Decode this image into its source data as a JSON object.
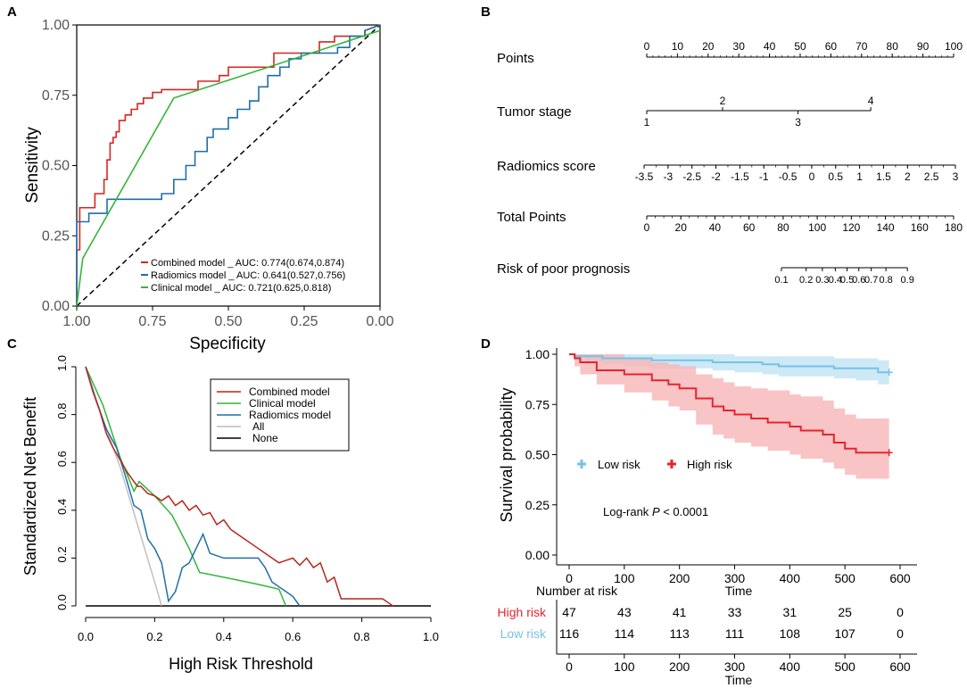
{
  "chart_data": [
    {
      "panel": "A",
      "type": "line",
      "title": "",
      "xlabel": "Specificity",
      "ylabel": "Sensitivity",
      "xlim": [
        1.0,
        0.0
      ],
      "ylim": [
        0.0,
        1.0
      ],
      "x_ticks": [
        "1.00",
        "0.75",
        "0.50",
        "0.25",
        "0.00"
      ],
      "y_ticks": [
        "0.00",
        "0.25",
        "0.50",
        "0.75",
        "1.00"
      ],
      "legend_position": "bottom-right",
      "series": [
        {
          "name": "Combined model _ AUC: 0.774(0.674,0.874)",
          "color": "#d7261e",
          "x": [
            1.0,
            1.0,
            0.99,
            0.99,
            0.94,
            0.94,
            0.91,
            0.91,
            0.9,
            0.9,
            0.89,
            0.89,
            0.88,
            0.88,
            0.87,
            0.87,
            0.86,
            0.86,
            0.84,
            0.84,
            0.82,
            0.82,
            0.8,
            0.8,
            0.78,
            0.78,
            0.75,
            0.75,
            0.72,
            0.72,
            0.6,
            0.6,
            0.53,
            0.53,
            0.5,
            0.5,
            0.35,
            0.35,
            0.2,
            0.2,
            0.15,
            0.15,
            0.05,
            0.05,
            0.0
          ],
          "y": [
            0.0,
            0.2,
            0.2,
            0.35,
            0.35,
            0.4,
            0.4,
            0.45,
            0.45,
            0.52,
            0.52,
            0.58,
            0.58,
            0.6,
            0.6,
            0.62,
            0.62,
            0.66,
            0.66,
            0.68,
            0.68,
            0.7,
            0.7,
            0.72,
            0.72,
            0.74,
            0.74,
            0.76,
            0.76,
            0.77,
            0.77,
            0.8,
            0.8,
            0.82,
            0.82,
            0.85,
            0.85,
            0.9,
            0.9,
            0.94,
            0.94,
            0.96,
            0.96,
            0.98,
            1.0
          ]
        },
        {
          "name": "Radiomics model _ AUC: 0.641(0.527,0.756)",
          "color": "#1f6fa8",
          "x": [
            1.0,
            1.0,
            0.96,
            0.96,
            0.9,
            0.9,
            0.8,
            0.8,
            0.72,
            0.72,
            0.68,
            0.68,
            0.64,
            0.64,
            0.61,
            0.61,
            0.57,
            0.57,
            0.55,
            0.55,
            0.5,
            0.5,
            0.47,
            0.47,
            0.43,
            0.43,
            0.4,
            0.4,
            0.4,
            0.4,
            0.37,
            0.37,
            0.33,
            0.33,
            0.3,
            0.3,
            0.26,
            0.26,
            0.14,
            0.14,
            0.1,
            0.1,
            0.05,
            0.05,
            0.0
          ],
          "y": [
            0.0,
            0.3,
            0.3,
            0.33,
            0.33,
            0.38,
            0.38,
            0.38,
            0.38,
            0.4,
            0.4,
            0.45,
            0.45,
            0.5,
            0.5,
            0.55,
            0.55,
            0.6,
            0.6,
            0.63,
            0.63,
            0.67,
            0.67,
            0.7,
            0.7,
            0.73,
            0.73,
            0.76,
            0.76,
            0.78,
            0.78,
            0.82,
            0.82,
            0.85,
            0.85,
            0.88,
            0.88,
            0.9,
            0.9,
            0.92,
            0.92,
            0.96,
            0.96,
            0.98,
            1.0
          ]
        },
        {
          "name": "Clinical model _ AUC: 0.721(0.625,0.818)",
          "color": "#32b53a",
          "x": [
            1.0,
            0.98,
            0.68,
            0.0
          ],
          "y": [
            0.0,
            0.17,
            0.74,
            0.98
          ]
        }
      ],
      "reference_line": {
        "x": [
          1.0,
          0.0
        ],
        "y": [
          0.0,
          1.0
        ],
        "style": "dashed",
        "color": "#000000"
      }
    },
    {
      "panel": "B",
      "type": "nomogram",
      "rows": [
        {
          "label": "Points",
          "scale": [
            0,
            100
          ],
          "ticks": [
            "0",
            "10",
            "20",
            "30",
            "40",
            "50",
            "60",
            "70",
            "80",
            "90",
            "100"
          ],
          "values": [
            0,
            10,
            20,
            30,
            40,
            50,
            60,
            70,
            80,
            90,
            100
          ]
        },
        {
          "label": "Tumor stage",
          "scale": [
            0,
            73
          ],
          "ticks_up": [
            "2",
            "4"
          ],
          "values_up": [
            24.7,
            73
          ],
          "ticks_down": [
            "1",
            "3"
          ],
          "values_down": [
            0,
            49.3
          ]
        },
        {
          "label": "Radiomics score",
          "ticks": [
            "-3.5",
            "-3",
            "-2.5",
            "-2",
            "-1.5",
            "-1",
            "-0.5",
            "0",
            "0.5",
            "1",
            "1.5",
            "2",
            "2.5",
            "3"
          ],
          "values": [
            -3.5,
            -3,
            -2.5,
            -2,
            -1.5,
            -1,
            -0.5,
            0,
            0.5,
            1,
            1.5,
            2,
            2.5,
            3
          ]
        },
        {
          "label": "Total Points",
          "scale": [
            0,
            180
          ],
          "ticks": [
            "0",
            "20",
            "40",
            "60",
            "80",
            "100",
            "120",
            "140",
            "160",
            "180"
          ],
          "values": [
            0,
            20,
            40,
            60,
            80,
            100,
            120,
            140,
            160,
            180
          ]
        },
        {
          "label": "Risk of poor prognosis",
          "ticks": [
            "0.1",
            "0.2",
            "0.3",
            "0.4",
            "0.5",
            "0.6",
            "0.7",
            "0.8",
            "0.9"
          ],
          "values": [
            0.1,
            0.2,
            0.3,
            0.4,
            0.5,
            0.6,
            0.7,
            0.8,
            0.9
          ],
          "total_points_at_ticks": [
            79,
            93.5,
            103,
            110.6,
            117.5,
            124.4,
            131.7,
            140.3,
            152.9
          ]
        }
      ]
    },
    {
      "panel": "C",
      "type": "line",
      "title": "",
      "xlabel": "High Risk Threshold",
      "ylabel": "Standardized Net Benefit",
      "xlim": [
        0.0,
        1.0
      ],
      "ylim": [
        0.0,
        1.0
      ],
      "x_ticks": [
        "0.0",
        "0.2",
        "0.4",
        "0.6",
        "0.8",
        "1.0"
      ],
      "y_ticks": [
        "0.0",
        "0.2",
        "0.4",
        "0.6",
        "0.8",
        "1.0"
      ],
      "legend_position": "top-right",
      "series": [
        {
          "name": "Combined model",
          "color": "#b5271e",
          "x": [
            0.0,
            0.02,
            0.04,
            0.06,
            0.08,
            0.1,
            0.12,
            0.14,
            0.15,
            0.16,
            0.18,
            0.2,
            0.22,
            0.24,
            0.26,
            0.28,
            0.3,
            0.32,
            0.34,
            0.36,
            0.38,
            0.4,
            0.42,
            0.44,
            0.46,
            0.48,
            0.5,
            0.52,
            0.54,
            0.56,
            0.58,
            0.6,
            0.62,
            0.64,
            0.66,
            0.68,
            0.7,
            0.72,
            0.74,
            0.78,
            0.82,
            0.86,
            0.88,
            0.89
          ],
          "y": [
            1.0,
            0.9,
            0.82,
            0.72,
            0.66,
            0.61,
            0.56,
            0.52,
            0.5,
            0.5,
            0.47,
            0.46,
            0.44,
            0.46,
            0.42,
            0.44,
            0.4,
            0.42,
            0.38,
            0.39,
            0.34,
            0.36,
            0.32,
            0.3,
            0.28,
            0.26,
            0.24,
            0.22,
            0.2,
            0.18,
            0.19,
            0.2,
            0.17,
            0.2,
            0.16,
            0.18,
            0.1,
            0.12,
            0.03,
            0.03,
            0.03,
            0.03,
            0.01,
            0.0
          ]
        },
        {
          "name": "Clinical model",
          "color": "#32b53a",
          "x": [
            0.0,
            0.05,
            0.1,
            0.14,
            0.155,
            0.2,
            0.25,
            0.3,
            0.33,
            0.4,
            0.5,
            0.56,
            0.58
          ],
          "y": [
            1.0,
            0.84,
            0.62,
            0.48,
            0.52,
            0.46,
            0.38,
            0.24,
            0.14,
            0.12,
            0.09,
            0.07,
            0.0
          ]
        },
        {
          "name": "Radiomics model",
          "color": "#1f6fa8",
          "x": [
            0.0,
            0.03,
            0.06,
            0.09,
            0.12,
            0.14,
            0.16,
            0.18,
            0.2,
            0.22,
            0.24,
            0.26,
            0.28,
            0.3,
            0.32,
            0.34,
            0.36,
            0.4,
            0.44,
            0.46,
            0.48,
            0.5,
            0.52,
            0.54,
            0.56,
            0.58,
            0.6,
            0.62
          ],
          "y": [
            1.0,
            0.86,
            0.74,
            0.66,
            0.52,
            0.42,
            0.4,
            0.28,
            0.24,
            0.18,
            0.02,
            0.06,
            0.16,
            0.18,
            0.24,
            0.3,
            0.22,
            0.2,
            0.2,
            0.2,
            0.2,
            0.2,
            0.16,
            0.1,
            0.08,
            0.06,
            0.04,
            0.0
          ]
        },
        {
          "name": "All",
          "color": "#bdbdbd",
          "x": [
            0.0,
            0.05,
            0.1,
            0.15,
            0.2,
            0.22
          ],
          "y": [
            1.0,
            0.78,
            0.58,
            0.34,
            0.1,
            0.0
          ]
        },
        {
          "name": "None",
          "color": "#000000",
          "x": [
            0.0,
            1.0
          ],
          "y": [
            0.0,
            0.0
          ]
        }
      ]
    },
    {
      "panel": "D",
      "type": "line",
      "title": "",
      "xlabel": "Time",
      "ylabel": "Survival probability",
      "xlim": [
        0,
        600
      ],
      "ylim": [
        0.0,
        1.0
      ],
      "x_ticks": [
        "0",
        "100",
        "200",
        "300",
        "400",
        "500",
        "600"
      ],
      "y_ticks": [
        "0.00",
        "0.25",
        "0.50",
        "0.75",
        "1.00"
      ],
      "annotation": "Log-rank",
      "annotation_italic": "P",
      "annotation_suffix": " < 0.0001",
      "legend_position": "middle-left",
      "series": [
        {
          "name": "Low risk",
          "color": "#74c3e6",
          "band_color": "#bfe3f3",
          "x": [
            0,
            10,
            30,
            60,
            100,
            150,
            200,
            260,
            300,
            350,
            380,
            420,
            480,
            520,
            560,
            580
          ],
          "y": [
            1.0,
            0.99,
            0.99,
            0.98,
            0.98,
            0.97,
            0.97,
            0.96,
            0.96,
            0.95,
            0.94,
            0.94,
            0.93,
            0.93,
            0.91,
            0.91
          ],
          "lower": [
            1.0,
            0.98,
            0.96,
            0.95,
            0.94,
            0.93,
            0.93,
            0.92,
            0.91,
            0.9,
            0.89,
            0.89,
            0.88,
            0.87,
            0.85,
            0.85
          ],
          "upper": [
            1.0,
            1.0,
            1.0,
            1.0,
            1.0,
            1.0,
            1.0,
            1.0,
            0.99,
            0.99,
            0.99,
            0.99,
            0.98,
            0.98,
            0.97,
            0.97
          ]
        },
        {
          "name": "High risk",
          "color": "#e8242b",
          "band_color": "#f6b5b7",
          "x": [
            0,
            10,
            20,
            50,
            100,
            150,
            180,
            200,
            230,
            260,
            280,
            300,
            330,
            360,
            400,
            420,
            460,
            480,
            500,
            520,
            540,
            580
          ],
          "y": [
            1.0,
            0.98,
            0.96,
            0.92,
            0.9,
            0.87,
            0.85,
            0.83,
            0.78,
            0.74,
            0.72,
            0.7,
            0.68,
            0.66,
            0.64,
            0.62,
            0.6,
            0.56,
            0.53,
            0.51,
            0.51,
            0.51
          ],
          "lower": [
            1.0,
            0.94,
            0.9,
            0.85,
            0.81,
            0.77,
            0.74,
            0.72,
            0.65,
            0.6,
            0.58,
            0.56,
            0.54,
            0.52,
            0.5,
            0.48,
            0.46,
            0.43,
            0.4,
            0.38,
            0.38,
            0.38
          ],
          "upper": [
            1.0,
            1.0,
            1.0,
            1.0,
            0.98,
            0.96,
            0.95,
            0.94,
            0.9,
            0.88,
            0.86,
            0.84,
            0.83,
            0.82,
            0.8,
            0.79,
            0.77,
            0.73,
            0.7,
            0.68,
            0.68,
            0.68
          ]
        }
      ],
      "risk_table": {
        "header": "Number at risk",
        "xlabel": "Time",
        "times": [
          "0",
          "100",
          "200",
          "300",
          "400",
          "500",
          "600"
        ],
        "rows": [
          {
            "label": "High risk",
            "color": "#e8242b",
            "values": [
              "47",
              "43",
              "41",
              "33",
              "31",
              "25",
              "0"
            ]
          },
          {
            "label": "Low risk",
            "color": "#74c3e6",
            "values": [
              "116",
              "114",
              "113",
              "111",
              "108",
              "107",
              "0"
            ]
          }
        ]
      }
    }
  ],
  "panels": {
    "a": "A",
    "b": "B",
    "c": "C",
    "d": "D"
  }
}
